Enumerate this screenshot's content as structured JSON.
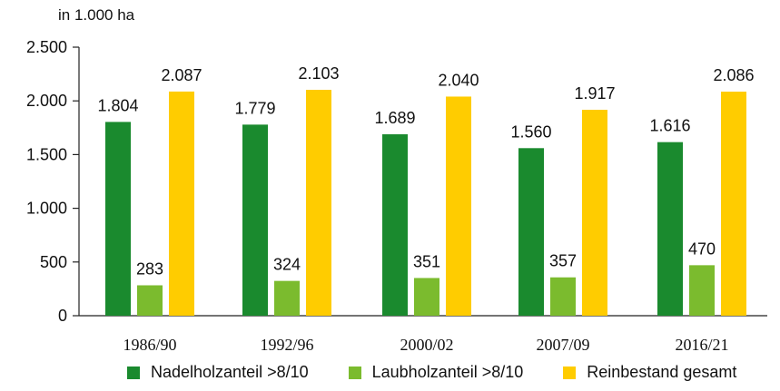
{
  "chart_data": {
    "type": "bar",
    "unit_label": "in 1.000 ha",
    "categories": [
      "1986/90",
      "1992/96",
      "2000/02",
      "2007/09",
      "2016/21"
    ],
    "series": [
      {
        "name": "Nadelholzanteil >8/10",
        "color": "#1a8a2e",
        "values": [
          1804,
          1779,
          1689,
          1560,
          1616
        ],
        "labels": [
          "1.804",
          "1.779",
          "1.689",
          "1.560",
          "1.616"
        ]
      },
      {
        "name": "Laubholzanteil >8/10",
        "color": "#7bbb2e",
        "values": [
          283,
          324,
          351,
          357,
          470
        ],
        "labels": [
          "283",
          "324",
          "351",
          "357",
          "470"
        ]
      },
      {
        "name": "Reinbestand gesamt",
        "color": "#ffcc00",
        "values": [
          2087,
          2103,
          2040,
          1917,
          2086
        ],
        "labels": [
          "2.087",
          "2.103",
          "2.040",
          "1.917",
          "2.086"
        ]
      }
    ],
    "ylim": [
      0,
      2500
    ],
    "yticks": [
      0,
      500,
      1000,
      1500,
      2000,
      2500
    ],
    "ytick_labels": [
      "0",
      "500",
      "1.000",
      "1.500",
      "2.000",
      "2.500"
    ],
    "grid": false,
    "legend_position": "bottom"
  }
}
